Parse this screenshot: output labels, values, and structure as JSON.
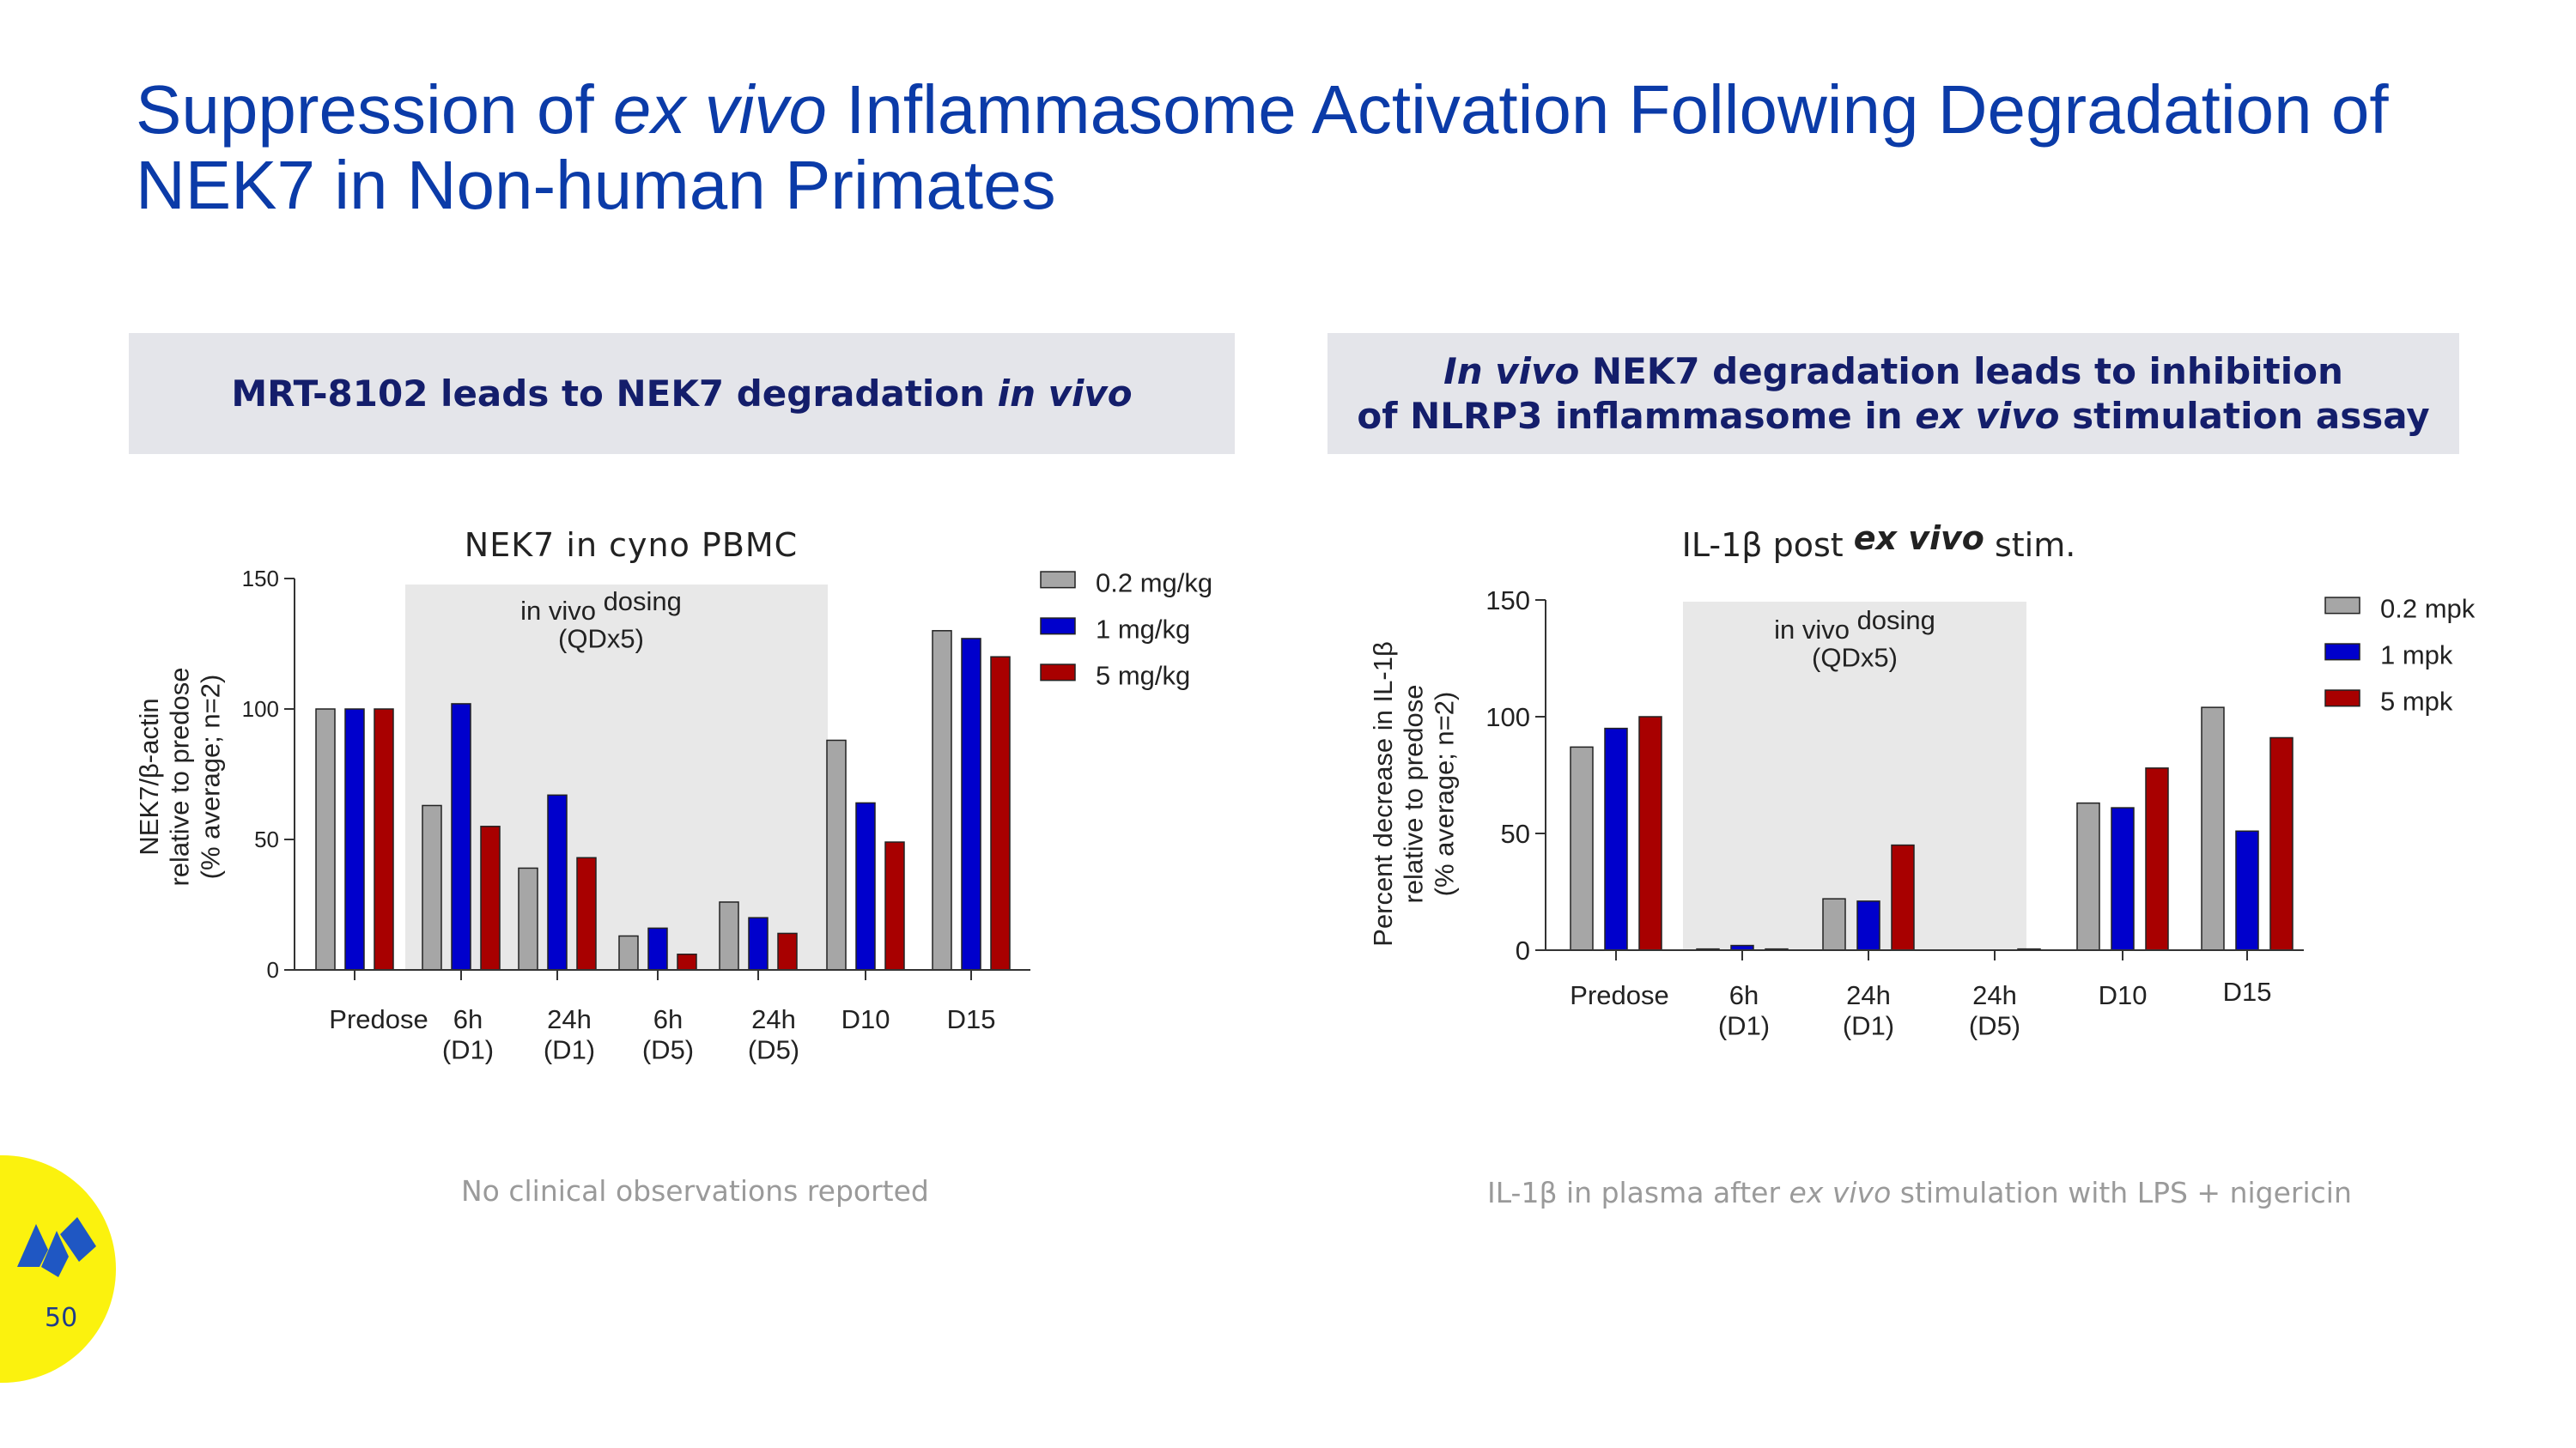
{
  "slide": {
    "title_part1": "Suppression of ",
    "title_italic": "ex vivo",
    "title_part2": " Inflammasome Activation Following Degradation of",
    "title_line2": "NEK7 in Non-human Primates",
    "page_number": "50"
  },
  "left_panel": {
    "header_normal": "MRT-8102 leads to NEK7 degradation ",
    "header_italic": "in vivo",
    "footnote": "No clinical observations reported"
  },
  "right_panel": {
    "header_l1_italic": "In vivo",
    "header_l1_normal": " NEK7 degradation leads to inhibition",
    "header_l2_normal1": "of NLRP3 inflammasome in ",
    "header_l2_italic": "ex vivo",
    "header_l2_normal2": " stimulation assay",
    "footnote_part1": "IL-1β in plasma after ",
    "footnote_italic": "ex vivo",
    "footnote_part2": " stimulation with LPS + nigericin"
  },
  "colors": {
    "title": "#0b3ba8",
    "gray_bar": "#a6a6a6",
    "blue_bar": "#0000cc",
    "red_bar": "#a80000",
    "shade": "#e8e8e8",
    "logo_yellow": "#fbf20e"
  },
  "chart_data": [
    {
      "type": "bar",
      "title": "NEK7 in cyno PBMC",
      "ylabel_lines": [
        "NEK7/β-actin",
        "relative to predose",
        "(% average; n=2)"
      ],
      "ylim": [
        0,
        150
      ],
      "yticks": [
        0,
        50,
        100,
        150
      ],
      "categories": [
        {
          "l1": "Predose",
          "l2": ""
        },
        {
          "l1": "6h",
          "l2": "(D1)"
        },
        {
          "l1": "24h",
          "l2": "(D1)"
        },
        {
          "l1": "6h",
          "l2": "(D5)"
        },
        {
          "l1": "24h",
          "l2": "(D5)"
        },
        {
          "l1": "D10",
          "l2": ""
        },
        {
          "l1": "D15",
          "l2": ""
        }
      ],
      "series": [
        {
          "name": "0.2 mg/kg",
          "color": "#a6a6a6",
          "values": [
            100,
            63,
            39,
            13,
            26,
            88,
            130
          ]
        },
        {
          "name": "1 mg/kg",
          "color": "#0000cc",
          "values": [
            100,
            102,
            67,
            16,
            20,
            64,
            127
          ]
        },
        {
          "name": "5 mg/kg",
          "color": "#a80000",
          "values": [
            100,
            55,
            43,
            6,
            14,
            49,
            120
          ]
        }
      ],
      "shaded_region": {
        "from_category": 1,
        "to_category": 4,
        "label_main": "in vivo",
        "label_sup": "dosing",
        "label_sub": "(QDx5)"
      }
    },
    {
      "type": "bar",
      "title_part1": "IL-1β post ",
      "title_italic": "ex vivo",
      "title_part2": " stim.",
      "ylabel_lines": [
        "Percent decrease in IL-1β",
        "relative to predose",
        "(% average; n=2)"
      ],
      "ylim": [
        0,
        150
      ],
      "yticks": [
        0,
        50,
        100,
        150
      ],
      "categories": [
        {
          "l1": "Predose",
          "l2": ""
        },
        {
          "l1": "6h",
          "l2": "(D1)"
        },
        {
          "l1": "24h",
          "l2": "(D1)"
        },
        {
          "l1": "24h",
          "l2": "(D5)"
        },
        {
          "l1": "D10",
          "l2": ""
        },
        {
          "l1": "D15",
          "l2": ""
        }
      ],
      "series": [
        {
          "name": "0.2 mpk",
          "color": "#a6a6a6",
          "values": [
            87,
            0.5,
            22,
            0,
            63,
            104
          ]
        },
        {
          "name": "1 mpk",
          "color": "#0000cc",
          "values": [
            95,
            2,
            21,
            0,
            61,
            51
          ]
        },
        {
          "name": "5 mpk",
          "color": "#a80000",
          "values": [
            100,
            0.5,
            45,
            0.5,
            78,
            91
          ]
        }
      ],
      "shaded_region": {
        "from_category": 1,
        "to_category": 3,
        "label_main": "in vivo",
        "label_sup": "dosing",
        "label_sub": "(QDx5)"
      }
    }
  ]
}
